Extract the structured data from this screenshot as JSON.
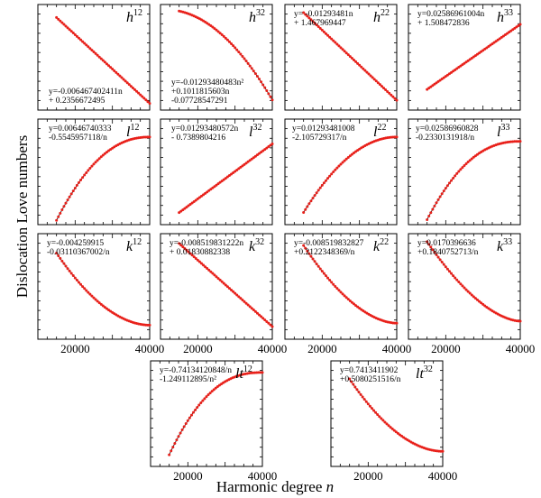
{
  "figure": {
    "ylabel": "Dislocation Love numbers",
    "xlabel": "Harmonic degree",
    "xlabel_var": "n",
    "xtick_labels": [
      "20000",
      "40000"
    ]
  },
  "chart_data": [
    {
      "type": "line",
      "name_base": "h",
      "name_sup": "12",
      "x": [
        15000,
        40000
      ],
      "y": [
        -6.467e-05,
        -0.00022735
      ],
      "ylim": [
        -0.00024,
        -4e-05
      ],
      "equation": [
        "y=-0.006467402411n",
        "+ 0.2356672495"
      ]
    },
    {
      "type": "line",
      "name_base": "h",
      "name_sup": "32",
      "x": [
        15000,
        40000
      ],
      "y": [
        1.22e-06,
        -1.602e-05
      ],
      "ylim": [
        -1.8e-05,
        2.5e-06
      ],
      "equation": [
        "y=-0.01293480483n²",
        "+0.1011815603n",
        "-0.07728547291"
      ]
    },
    {
      "type": "line",
      "name_base": "h",
      "name_sup": "22",
      "x": [
        15000,
        40000
      ],
      "y": [
        9.77e-05,
        -3.52e-05
      ],
      "ylim": [
        -5e-05,
        0.00011
      ],
      "equation": [
        "y= -0.01293481n",
        "+ 1.467969447"
      ]
    },
    {
      "type": "line",
      "name_base": "h",
      "name_sup": "33",
      "x": [
        15000,
        40000
      ],
      "y": [
        9.99e-05,
        0.0001153
      ],
      "ylim": [
        9.5e-05,
        0.00012
      ],
      "equation": [
        "y=0.02586961004n",
        "+ 1.508472836"
      ]
    },
    {
      "type": "line",
      "name_base": "l",
      "name_sup": "12",
      "x": [
        15000,
        40000
      ],
      "y": [
        -8.527e-05,
        -3.155e-05
      ],
      "ylim": [
        -8.8e-05,
        -2e-05
      ],
      "equation": [
        "y=0.00646740333",
        "-0.5545957118/n"
      ]
    },
    {
      "type": "line",
      "name_base": "l",
      "name_sup": "32",
      "x": [
        15000,
        40000
      ],
      "y": [
        1.33e-06,
        2.607e-05
      ],
      "ylim": [
        -3e-06,
        3.5e-05
      ],
      "equation": [
        "y=0.01293480572n",
        "- 0.7389804216"
      ]
    },
    {
      "type": "line",
      "name_base": "l",
      "name_sup": "22",
      "x": [
        15000,
        40000
      ],
      "y": [
        -1.101e-05,
        7.59e-06
      ],
      "ylim": [
        -1.4e-05,
        1.2e-05
      ],
      "equation": [
        "y=0.01293481008",
        "-2.105729317/n"
      ]
    },
    {
      "type": "line",
      "name_base": "l",
      "name_sup": "33",
      "x": [
        15000,
        40000
      ],
      "y": [
        -1.24e-05,
        2.84e-05
      ],
      "ylim": [
        -1.5e-05,
        4e-05
      ],
      "equation": [
        "y=0.02586960828",
        "-0.2330131918/n"
      ]
    },
    {
      "type": "line",
      "name_base": "k",
      "name_sup": "12",
      "x": [
        15000,
        40000
      ],
      "y": [
        9e-07,
        -3.2e-06
      ],
      "ylim": [
        -4e-06,
        2e-06
      ],
      "equation": [
        "y=-0.004259915",
        "-0.03110367002/n"
      ]
    },
    {
      "type": "line",
      "name_base": "k",
      "name_sup": "32",
      "x": [
        15000,
        40000
      ],
      "y": [
        6.1e-06,
        -5.7e-06
      ],
      "ylim": [
        -7.5e-06,
        7.5e-06
      ],
      "equation": [
        "y=-0.008519831222n",
        "+ 0.01830882338"
      ]
    },
    {
      "type": "line",
      "name_base": "k",
      "name_sup": "22",
      "x": [
        15000,
        40000
      ],
      "y": [
        6.1e-06,
        -3.1e-06
      ],
      "ylim": [
        -5e-06,
        7.5e-06
      ],
      "equation": [
        "y=-0.008519832827",
        "+0.2122348369/n"
      ]
    },
    {
      "type": "line",
      "name_base": "k",
      "name_sup": "33",
      "x": [
        15000,
        40000
      ],
      "y": [
        5.7e-06,
        -2.2e-06
      ],
      "ylim": [
        -4e-06,
        6.5e-06
      ],
      "equation": [
        "y=0.0170396636",
        "+0.1840752713/n"
      ]
    },
    {
      "type": "line",
      "name_base": "lt",
      "name_sup": "12",
      "x": [
        15000,
        40000
      ],
      "y": [
        -8.9e-06,
        -1.1e-06
      ],
      "ylim": [
        -1e-05,
        0
      ],
      "equation": [
        "y=-0.74134120848/n",
        "-1.249112895/n²"
      ]
    },
    {
      "type": "line",
      "name_base": "lt",
      "name_sup": "32",
      "x": [
        15000,
        40000
      ],
      "y": [
        2.9e-06,
        5e-07
      ],
      "ylim": [
        0,
        3.5e-06
      ],
      "equation": [
        "y=0.7413411902",
        "+0.5080251516/n"
      ]
    }
  ]
}
